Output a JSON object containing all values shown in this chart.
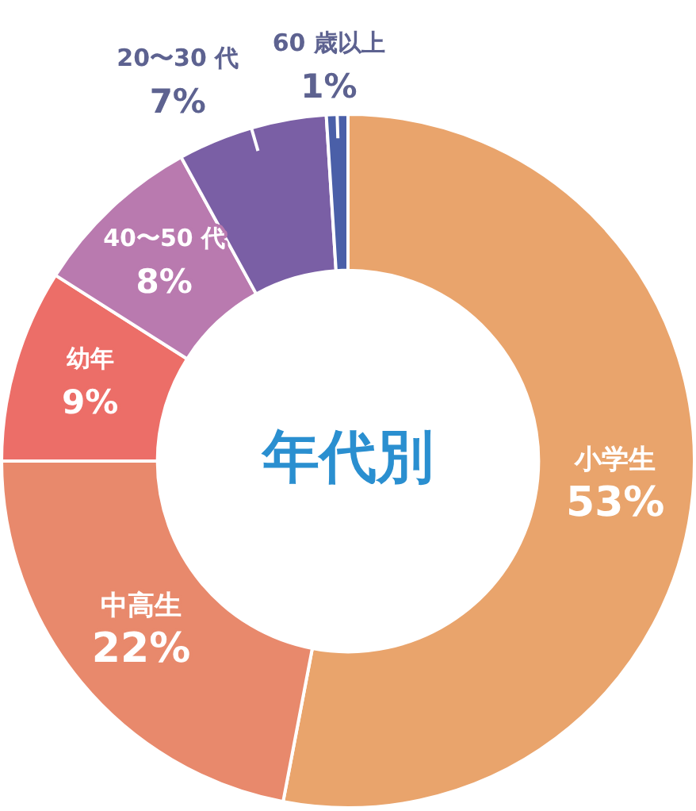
{
  "chart_data": {
    "type": "donut",
    "title": "年代別",
    "categories": [
      "小学生",
      "中高生",
      "幼年",
      "40〜50 代",
      "20〜30 代",
      "60 歳以上"
    ],
    "values": [
      53,
      22,
      9,
      8,
      7,
      1
    ],
    "value_labels": [
      "53%",
      "22%",
      "9%",
      "8%",
      "7%",
      "1%"
    ],
    "colors": [
      "#e9a46c",
      "#e8896c",
      "#ec6e68",
      "#b97aaf",
      "#7a5fa5",
      "#4a5fa8"
    ],
    "legend": false
  }
}
